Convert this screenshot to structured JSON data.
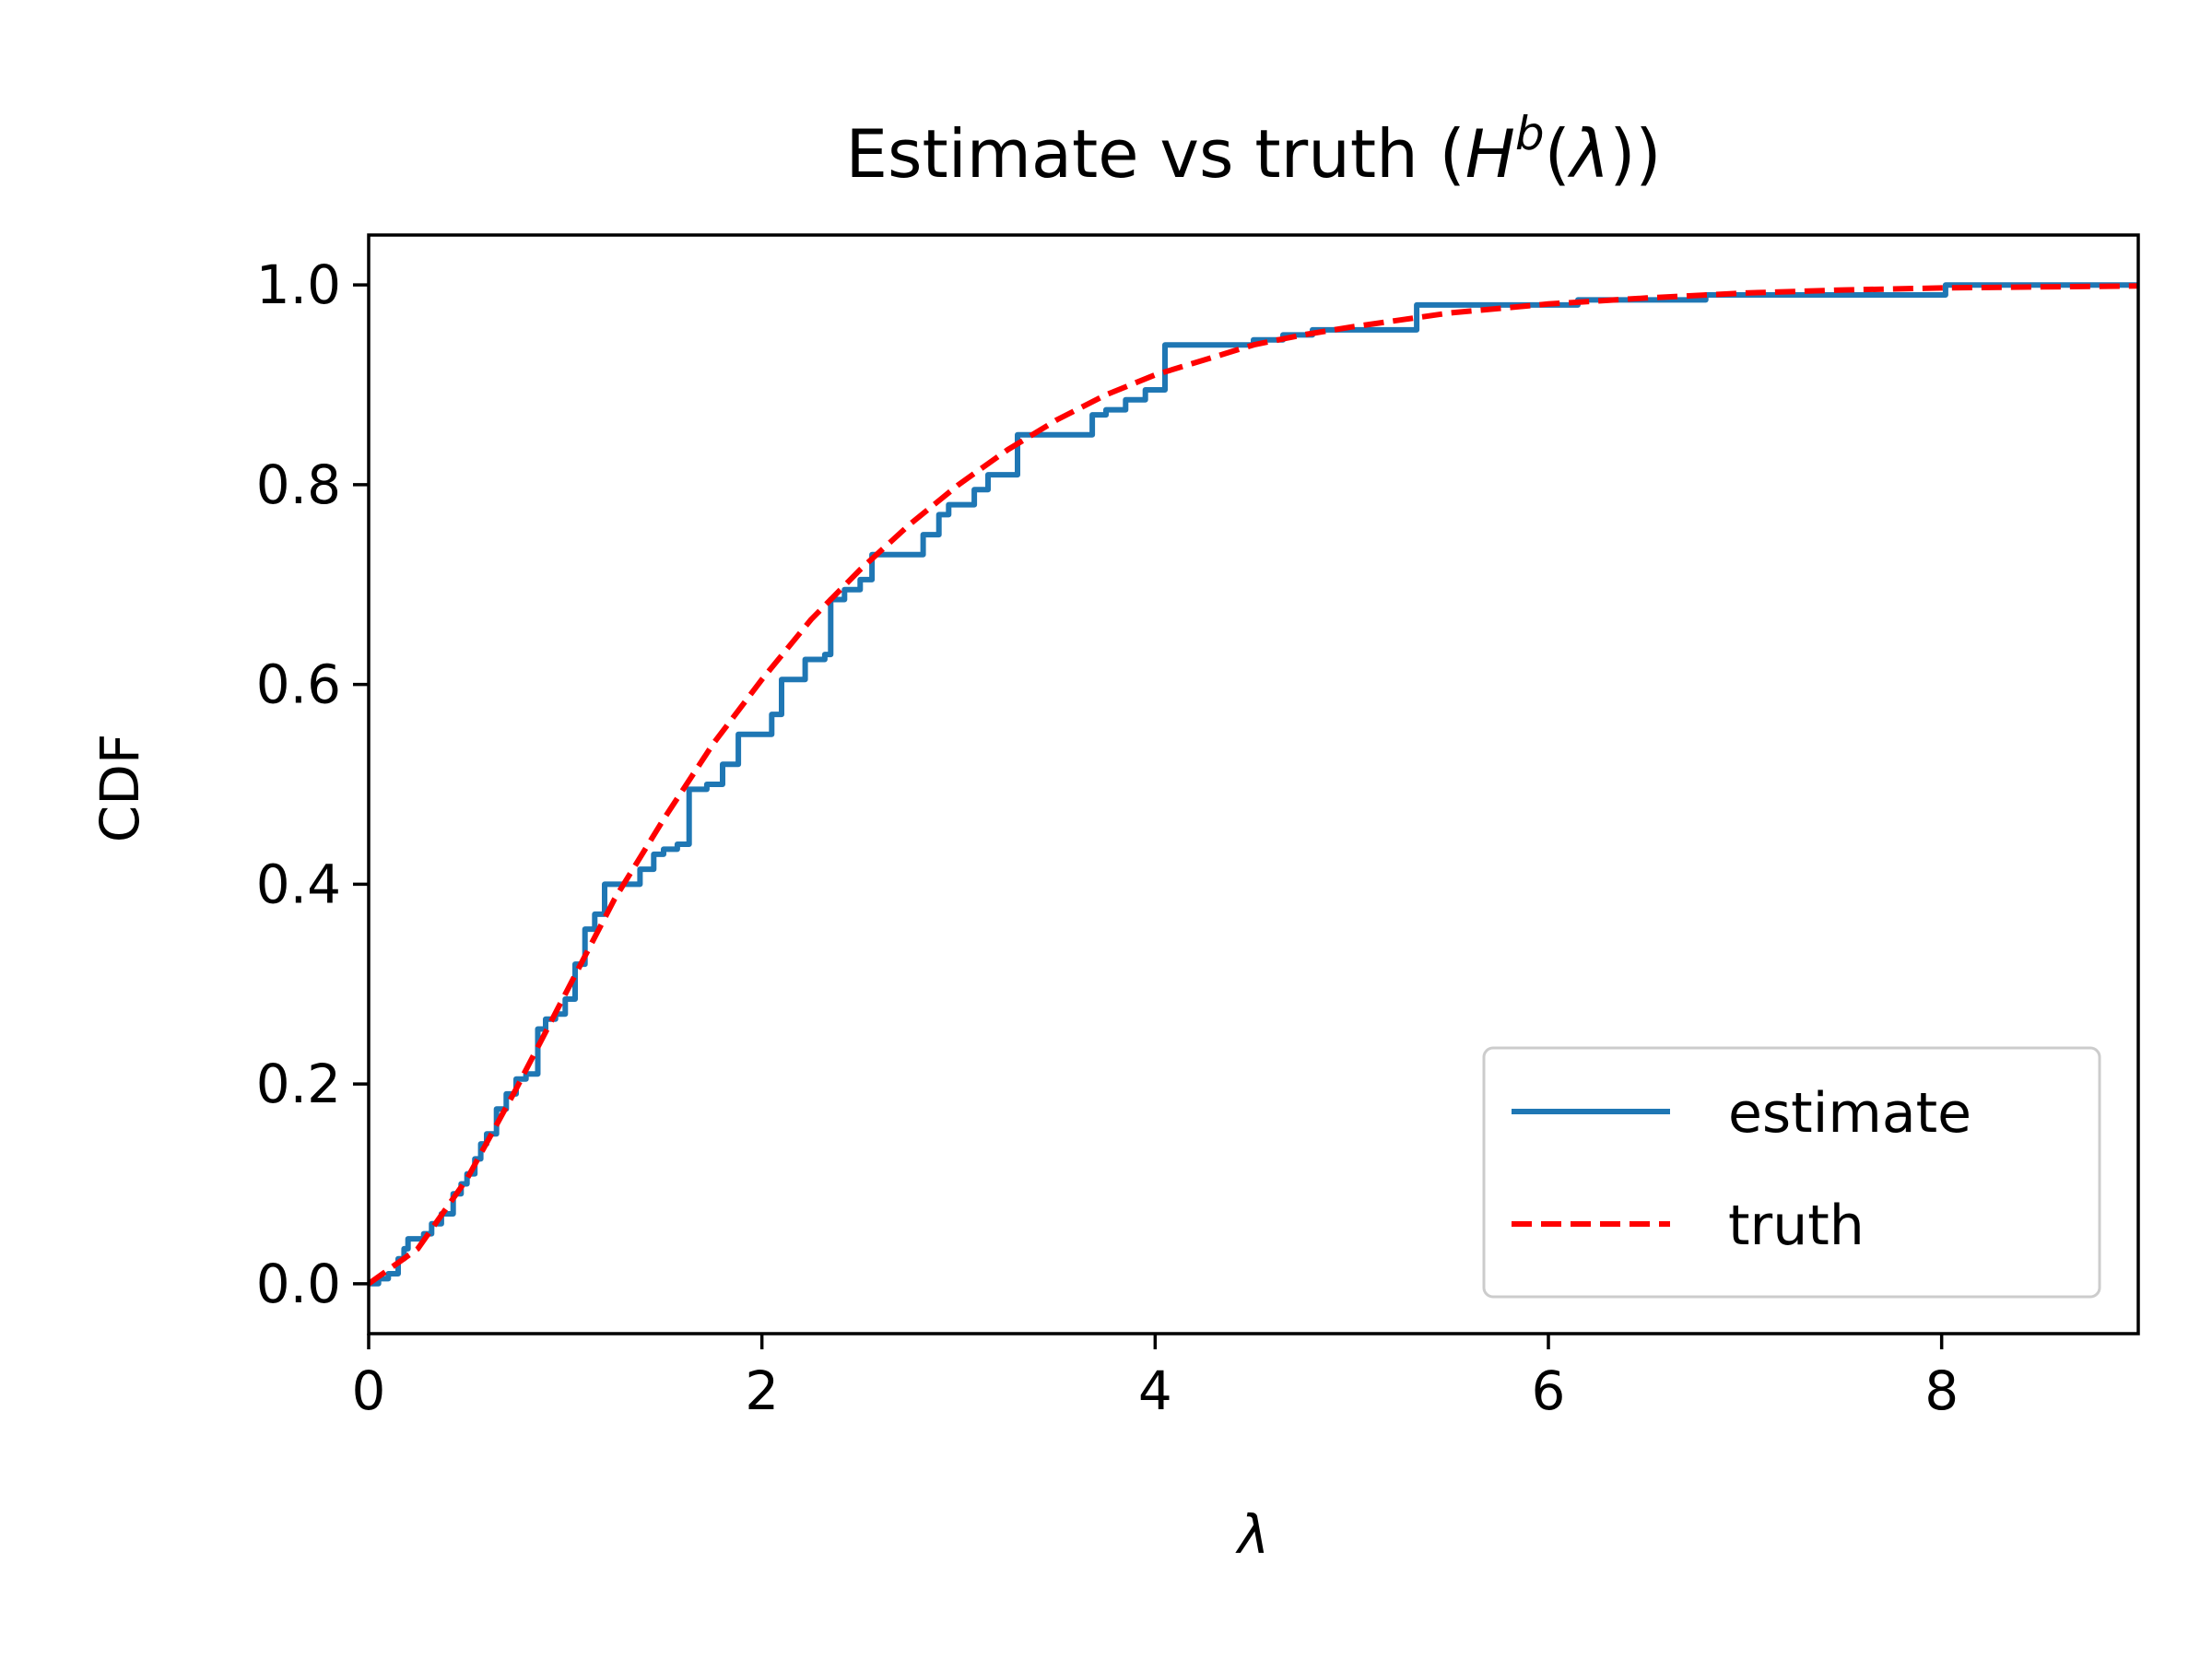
{
  "chart_data": {
    "type": "line",
    "title": {
      "prefix": "Estimate vs truth (",
      "symbol": "H",
      "superscript": "b",
      "paren_open": "(",
      "lambda": "λ",
      "suffix": "))"
    },
    "xlabel": "λ",
    "ylabel": "CDF",
    "xlim": [
      0,
      9
    ],
    "ylim": [
      -0.05,
      1.05
    ],
    "xticks": [
      0,
      2,
      4,
      6,
      8
    ],
    "xtick_labels": [
      "0",
      "2",
      "4",
      "6",
      "8"
    ],
    "yticks": [
      0.0,
      0.2,
      0.4,
      0.6,
      0.8,
      1.0
    ],
    "ytick_labels": [
      "0.0",
      "0.2",
      "0.4",
      "0.6",
      "0.8",
      "1.0"
    ],
    "grid": false,
    "legend_position": "lower-right",
    "series": [
      {
        "name": "estimate",
        "style": "step",
        "color": "#1f77b4",
        "x": [
          0,
          0.05,
          0.1,
          0.15,
          0.18,
          0.2,
          0.28,
          0.32,
          0.37,
          0.43,
          0.47,
          0.5,
          0.54,
          0.57,
          0.6,
          0.65,
          0.7,
          0.75,
          0.8,
          0.86,
          0.9,
          0.95,
          1.0,
          1.05,
          1.1,
          1.15,
          1.2,
          1.38,
          1.45,
          1.5,
          1.57,
          1.63,
          1.72,
          1.8,
          1.88,
          2.05,
          2.1,
          2.22,
          2.32,
          2.35,
          2.42,
          2.5,
          2.56,
          2.82,
          2.9,
          2.95,
          3.08,
          3.15,
          3.3,
          3.68,
          3.75,
          3.85,
          3.95,
          4.05,
          4.5,
          4.65,
          4.8,
          5.33,
          6.15,
          6.8,
          8.02,
          9.0
        ],
        "y": [
          0.0,
          0.005,
          0.01,
          0.025,
          0.035,
          0.045,
          0.05,
          0.06,
          0.07,
          0.09,
          0.1,
          0.11,
          0.125,
          0.14,
          0.15,
          0.175,
          0.19,
          0.205,
          0.21,
          0.255,
          0.265,
          0.27,
          0.285,
          0.32,
          0.355,
          0.37,
          0.4,
          0.415,
          0.43,
          0.435,
          0.44,
          0.495,
          0.5,
          0.52,
          0.55,
          0.57,
          0.605,
          0.625,
          0.63,
          0.685,
          0.695,
          0.705,
          0.73,
          0.75,
          0.77,
          0.78,
          0.795,
          0.81,
          0.85,
          0.87,
          0.875,
          0.885,
          0.895,
          0.94,
          0.945,
          0.95,
          0.955,
          0.98,
          0.985,
          0.99,
          1.0,
          1.0
        ]
      },
      {
        "name": "truth",
        "style": "dashed",
        "color": "#ff0000",
        "x": [
          0,
          0.25,
          0.5,
          0.75,
          1.0,
          1.25,
          1.5,
          1.75,
          2.0,
          2.25,
          2.5,
          2.75,
          3.0,
          3.25,
          3.5,
          3.75,
          4.0,
          4.25,
          4.5,
          4.75,
          5.0,
          5.5,
          6.0,
          6.5,
          7.0,
          7.5,
          8.0,
          8.5,
          9.0
        ],
        "y": [
          0.0,
          0.035,
          0.105,
          0.195,
          0.29,
          0.385,
          0.465,
          0.54,
          0.605,
          0.665,
          0.715,
          0.76,
          0.8,
          0.835,
          0.865,
          0.89,
          0.91,
          0.925,
          0.94,
          0.95,
          0.958,
          0.972,
          0.981,
          0.987,
          0.992,
          0.995,
          0.997,
          0.998,
          0.999
        ]
      }
    ]
  }
}
